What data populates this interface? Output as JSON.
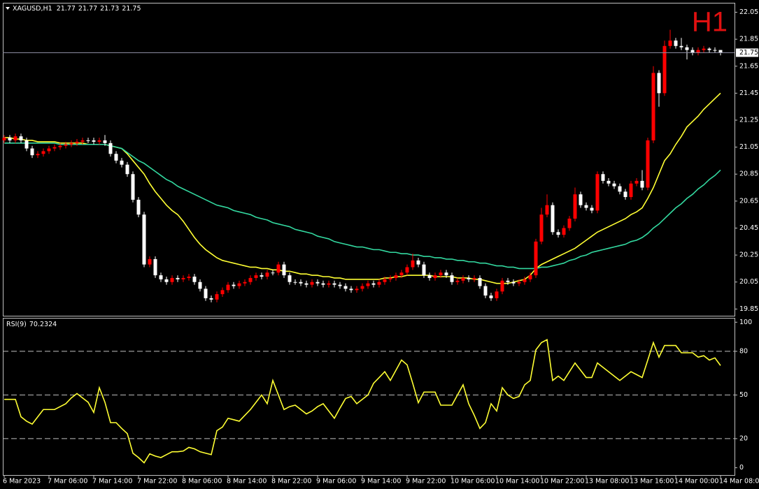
{
  "chart_data": [
    {
      "type": "candlestick",
      "title": "XAGUSD,H1",
      "watermark": "H1",
      "categories": [
        "6 Mar 2023",
        null,
        null,
        null,
        null,
        null,
        null,
        null,
        "7 Mar 06:00",
        null,
        null,
        null,
        null,
        null,
        null,
        null,
        "7 Mar 14:00",
        null,
        null,
        null,
        null,
        null,
        null,
        null,
        "7 Mar 22:00",
        null,
        null,
        null,
        null,
        null,
        null,
        null,
        "8 Mar 06:00",
        null,
        null,
        null,
        null,
        null,
        null,
        null,
        "8 Mar 14:00",
        null,
        null,
        null,
        null,
        null,
        null,
        null,
        "8 Mar 22:00",
        null,
        null,
        null,
        null,
        null,
        null,
        null,
        "9 Mar 06:00",
        null,
        null,
        null,
        null,
        null,
        null,
        null,
        "9 Mar 14:00",
        null,
        null,
        null,
        null,
        null,
        null,
        null,
        "9 Mar 22:00",
        null,
        null,
        null,
        null,
        null,
        null,
        null,
        "10 Mar 06:00",
        null,
        null,
        null,
        null,
        null,
        null,
        null,
        "10 Mar 14:00",
        null,
        null,
        null,
        null,
        null,
        null,
        null,
        "10 Mar 22:00",
        null,
        null,
        null,
        null,
        null,
        null,
        null,
        "13 Mar 08:00",
        null,
        null,
        null,
        null,
        null,
        null,
        null,
        "13 Mar 16:00",
        null,
        null,
        null,
        null,
        null,
        null,
        null,
        "14 Mar 00:00",
        null,
        null,
        null,
        null,
        null,
        null,
        null,
        "14 Mar 08:00"
      ],
      "open": [
        21.1,
        21.12,
        21.1,
        21.13,
        21.1,
        21.04,
        20.99,
        21.0,
        21.02,
        21.04,
        21.05,
        21.06,
        21.07,
        21.08,
        21.09,
        21.1,
        21.1,
        21.09,
        21.1,
        21.08,
        21.0,
        20.95,
        20.92,
        20.85,
        20.66,
        20.55,
        20.18,
        20.22,
        20.1,
        20.07,
        20.05,
        20.08,
        20.07,
        20.08,
        20.09,
        20.05,
        20.0,
        19.93,
        19.92,
        19.96,
        19.99,
        20.03,
        20.02,
        20.04,
        20.05,
        20.08,
        20.1,
        20.09,
        20.12,
        20.12,
        20.18,
        20.1,
        20.05,
        20.05,
        20.04,
        20.03,
        20.05,
        20.04,
        20.03,
        20.04,
        20.03,
        20.02,
        20.0,
        19.99,
        20.0,
        20.02,
        20.04,
        20.03,
        20.05,
        20.07,
        20.08,
        20.1,
        20.12,
        20.16,
        20.21,
        20.18,
        20.1,
        20.08,
        20.1,
        20.12,
        20.1,
        20.05,
        20.06,
        20.08,
        20.07,
        20.08,
        20.02,
        19.95,
        19.93,
        19.98,
        20.06,
        20.05,
        20.04,
        20.05,
        20.07,
        20.1,
        20.35,
        20.55,
        20.62,
        20.42,
        20.4,
        20.45,
        20.52,
        20.7,
        20.62,
        20.6,
        20.58,
        20.85,
        20.8,
        20.78,
        20.76,
        20.72,
        20.68,
        20.78,
        20.8,
        20.75,
        21.1,
        21.6,
        21.45,
        21.8,
        21.84,
        21.8,
        21.79,
        21.77,
        21.75,
        21.77,
        21.78,
        21.77,
        21.77
      ],
      "high": [
        21.14,
        21.14,
        21.15,
        21.15,
        21.12,
        21.06,
        21.02,
        21.04,
        21.06,
        21.07,
        21.08,
        21.09,
        21.1,
        21.11,
        21.12,
        21.12,
        21.12,
        21.12,
        21.14,
        21.1,
        21.02,
        20.97,
        20.94,
        20.87,
        20.68,
        20.57,
        20.24,
        20.24,
        20.12,
        20.09,
        20.1,
        20.1,
        20.1,
        20.11,
        20.11,
        20.07,
        20.02,
        19.95,
        19.98,
        20.01,
        20.05,
        20.05,
        20.06,
        20.07,
        20.1,
        20.12,
        20.12,
        20.14,
        20.14,
        20.2,
        20.2,
        20.12,
        20.07,
        20.07,
        20.06,
        20.07,
        20.07,
        20.06,
        20.06,
        20.06,
        20.05,
        20.04,
        20.02,
        20.02,
        20.04,
        20.06,
        20.06,
        20.07,
        20.09,
        20.1,
        20.12,
        20.14,
        20.18,
        20.26,
        20.23,
        20.2,
        20.12,
        20.12,
        20.14,
        20.14,
        20.12,
        20.08,
        20.1,
        20.1,
        20.1,
        20.1,
        20.04,
        19.97,
        20.0,
        20.08,
        20.08,
        20.07,
        20.07,
        20.09,
        20.12,
        20.37,
        20.6,
        20.7,
        20.64,
        20.44,
        20.47,
        20.54,
        20.75,
        20.72,
        20.64,
        20.62,
        20.87,
        20.87,
        20.82,
        20.8,
        20.78,
        20.74,
        20.8,
        20.82,
        20.88,
        21.12,
        21.65,
        21.62,
        21.84,
        21.92,
        21.86,
        21.86,
        21.81,
        21.79,
        21.79,
        21.8,
        21.79,
        21.79,
        21.77
      ],
      "low": [
        21.08,
        21.08,
        21.08,
        21.08,
        21.02,
        20.97,
        20.97,
        20.98,
        21.0,
        21.02,
        21.03,
        21.04,
        21.05,
        21.06,
        21.07,
        21.08,
        21.07,
        21.07,
        21.06,
        20.98,
        20.93,
        20.9,
        20.83,
        20.64,
        20.53,
        20.16,
        20.16,
        20.08,
        20.05,
        20.03,
        20.03,
        20.05,
        20.05,
        20.06,
        20.03,
        19.98,
        19.91,
        19.9,
        19.9,
        19.94,
        19.97,
        20.0,
        20.0,
        20.02,
        20.03,
        20.06,
        20.07,
        20.07,
        20.1,
        20.1,
        20.08,
        20.03,
        20.03,
        20.02,
        20.01,
        20.01,
        20.02,
        20.01,
        20.01,
        20.01,
        20.0,
        19.98,
        19.97,
        19.97,
        19.98,
        20.0,
        20.01,
        20.01,
        20.03,
        20.05,
        20.06,
        20.08,
        20.1,
        20.14,
        20.16,
        20.08,
        20.06,
        20.06,
        20.08,
        20.08,
        20.03,
        20.03,
        20.04,
        20.05,
        20.05,
        20.0,
        19.93,
        19.91,
        19.91,
        19.96,
        20.03,
        20.02,
        20.02,
        20.03,
        20.05,
        20.08,
        20.33,
        20.53,
        20.4,
        20.38,
        20.38,
        20.43,
        20.5,
        20.6,
        20.58,
        20.56,
        20.56,
        20.78,
        20.76,
        20.74,
        20.7,
        20.66,
        20.66,
        20.76,
        20.73,
        20.73,
        21.08,
        21.35,
        21.43,
        21.78,
        21.78,
        21.77,
        21.7,
        21.73,
        21.73,
        21.75,
        21.75,
        21.75,
        21.73
      ],
      "close": [
        21.12,
        21.1,
        21.13,
        21.1,
        21.04,
        20.99,
        21.0,
        21.02,
        21.04,
        21.05,
        21.06,
        21.07,
        21.08,
        21.09,
        21.1,
        21.1,
        21.09,
        21.1,
        21.08,
        21.0,
        20.95,
        20.92,
        20.85,
        20.66,
        20.55,
        20.18,
        20.22,
        20.1,
        20.07,
        20.05,
        20.08,
        20.07,
        20.08,
        20.09,
        20.05,
        20.0,
        19.93,
        19.92,
        19.96,
        19.99,
        20.03,
        20.02,
        20.04,
        20.05,
        20.08,
        20.1,
        20.09,
        20.12,
        20.12,
        20.18,
        20.1,
        20.05,
        20.05,
        20.04,
        20.03,
        20.05,
        20.04,
        20.03,
        20.04,
        20.03,
        20.02,
        20.0,
        19.99,
        20.0,
        20.02,
        20.04,
        20.03,
        20.05,
        20.07,
        20.08,
        20.1,
        20.12,
        20.16,
        20.21,
        20.18,
        20.1,
        20.08,
        20.1,
        20.12,
        20.1,
        20.05,
        20.06,
        20.08,
        20.07,
        20.08,
        20.02,
        19.95,
        19.93,
        19.98,
        20.06,
        20.05,
        20.04,
        20.05,
        20.07,
        20.1,
        20.35,
        20.55,
        20.62,
        20.42,
        20.4,
        20.45,
        20.52,
        20.7,
        20.62,
        20.6,
        20.58,
        20.85,
        20.8,
        20.78,
        20.76,
        20.72,
        20.68,
        20.78,
        20.8,
        20.75,
        21.1,
        21.6,
        21.45,
        21.8,
        21.84,
        21.8,
        21.79,
        21.77,
        21.75,
        21.77,
        21.78,
        21.77,
        21.77,
        21.75
      ],
      "color_up": "#ff0000",
      "color_down": "#ffffff",
      "ma_lines": [
        {
          "color": "#ffff33",
          "values": [
            21.12,
            21.12,
            21.11,
            21.11,
            21.1,
            21.1,
            21.09,
            21.09,
            21.09,
            21.09,
            21.08,
            21.08,
            21.08,
            21.08,
            21.08,
            21.07,
            21.07,
            21.07,
            21.07,
            21.06,
            21.05,
            21.04,
            21.0,
            20.95,
            20.9,
            20.85,
            20.78,
            20.72,
            20.67,
            20.62,
            20.58,
            20.55,
            20.5,
            20.44,
            20.38,
            20.33,
            20.29,
            20.26,
            20.23,
            20.21,
            20.2,
            20.19,
            20.18,
            20.17,
            20.16,
            20.16,
            20.15,
            20.15,
            20.14,
            20.14,
            20.13,
            20.13,
            20.12,
            20.11,
            20.11,
            20.1,
            20.1,
            20.09,
            20.09,
            20.08,
            20.08,
            20.07,
            20.07,
            20.07,
            20.07,
            20.07,
            20.07,
            20.07,
            20.08,
            20.08,
            20.09,
            20.09,
            20.1,
            20.1,
            20.1,
            20.1,
            20.1,
            20.09,
            20.09,
            20.09,
            20.09,
            20.08,
            20.08,
            20.08,
            20.07,
            20.07,
            20.06,
            20.05,
            20.04,
            20.04,
            20.04,
            20.05,
            20.06,
            20.07,
            20.1,
            20.15,
            20.18,
            20.2,
            20.22,
            20.24,
            20.26,
            20.28,
            20.3,
            20.33,
            20.36,
            20.39,
            20.42,
            20.44,
            20.46,
            20.48,
            20.5,
            20.52,
            20.55,
            20.57,
            20.6,
            20.67,
            20.75,
            20.85,
            20.95,
            21.0,
            21.07,
            21.13,
            21.2,
            21.24,
            21.28,
            21.33,
            21.37,
            21.41,
            21.45
          ]
        },
        {
          "color": "#33d9a0",
          "values": [
            21.08,
            21.08,
            21.08,
            21.08,
            21.08,
            21.08,
            21.08,
            21.08,
            21.08,
            21.08,
            21.07,
            21.07,
            21.07,
            21.07,
            21.07,
            21.07,
            21.07,
            21.07,
            21.07,
            21.06,
            21.05,
            21.04,
            21.01,
            20.98,
            20.95,
            20.93,
            20.9,
            20.87,
            20.84,
            20.81,
            20.79,
            20.76,
            20.74,
            20.72,
            20.7,
            20.68,
            20.66,
            20.64,
            20.62,
            20.61,
            20.6,
            20.58,
            20.57,
            20.56,
            20.55,
            20.53,
            20.52,
            20.51,
            20.49,
            20.48,
            20.47,
            20.46,
            20.44,
            20.43,
            20.42,
            20.41,
            20.39,
            20.38,
            20.37,
            20.35,
            20.34,
            20.33,
            20.32,
            20.31,
            20.31,
            20.3,
            20.29,
            20.29,
            20.28,
            20.27,
            20.27,
            20.26,
            20.26,
            20.25,
            20.25,
            20.24,
            20.24,
            20.23,
            20.23,
            20.22,
            20.22,
            20.21,
            20.21,
            20.2,
            20.2,
            20.19,
            20.19,
            20.18,
            20.17,
            20.17,
            20.16,
            20.16,
            20.15,
            20.15,
            20.15,
            20.15,
            20.16,
            20.16,
            20.17,
            20.18,
            20.19,
            20.21,
            20.22,
            20.24,
            20.25,
            20.27,
            20.28,
            20.29,
            20.3,
            20.31,
            20.32,
            20.33,
            20.35,
            20.36,
            20.38,
            20.41,
            20.45,
            20.48,
            20.52,
            20.56,
            20.6,
            20.63,
            20.67,
            20.7,
            20.74,
            20.77,
            20.81,
            20.84,
            20.88
          ]
        }
      ],
      "ylim": [
        19.8,
        22.12
      ],
      "yticks": [
        22.05,
        21.85,
        21.65,
        21.45,
        21.25,
        21.05,
        20.85,
        20.65,
        20.45,
        20.25,
        20.05,
        19.85
      ]
    },
    {
      "type": "line",
      "title": "RSI(9)",
      "color": "#ffff33",
      "values": [
        47,
        47,
        47,
        35,
        32,
        30,
        35,
        40,
        40,
        40,
        42,
        44,
        48,
        51,
        48,
        45,
        38,
        55,
        45,
        31,
        31,
        27,
        23.5,
        10,
        7,
        3.4,
        9.6,
        8,
        7,
        9,
        11,
        11,
        11.5,
        14,
        13,
        11,
        10,
        9,
        25.5,
        28,
        34,
        33,
        32,
        36,
        40,
        45,
        50,
        44,
        60,
        50,
        40,
        42,
        43,
        40,
        37,
        39,
        42,
        44,
        39,
        34,
        41,
        47.6,
        49,
        44,
        47,
        50,
        58,
        62,
        66,
        60,
        67,
        74,
        70.7,
        58,
        44.7,
        52,
        52,
        52,
        43,
        43,
        43,
        50,
        57,
        44,
        36,
        27,
        31,
        44,
        39,
        55,
        50,
        47.6,
        49,
        57,
        60,
        81,
        86,
        88,
        60,
        63,
        60,
        66,
        72,
        67,
        62,
        62,
        72,
        69,
        66,
        63,
        60,
        63,
        66,
        64,
        62,
        74,
        86,
        76,
        84,
        84,
        84,
        79,
        79,
        79,
        76,
        77,
        74,
        75.5,
        70.2324
      ],
      "ylim": [
        -5,
        103
      ],
      "yticks": [
        100,
        80,
        50,
        20,
        0
      ],
      "levels": [
        80,
        50,
        20
      ]
    }
  ]
}
